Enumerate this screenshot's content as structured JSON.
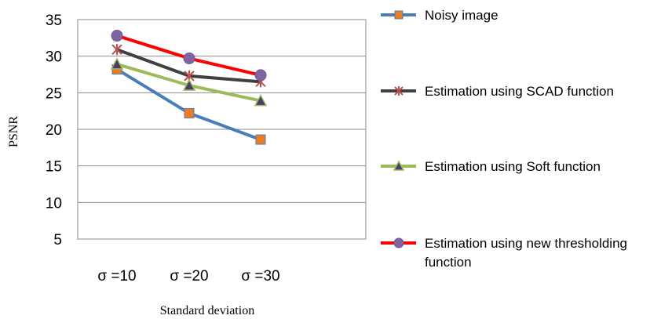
{
  "chart_data": {
    "type": "line",
    "categories": [
      "σ =10",
      "σ =20",
      "σ =30"
    ],
    "xlabel": "Standard deviation",
    "ylabel": "PSNR",
    "ylim": [
      5,
      35
    ],
    "yticks": [
      5,
      10,
      15,
      20,
      25,
      30,
      35
    ],
    "grid": true,
    "legend_position": "right",
    "series": [
      {
        "name": "Noisy image",
        "values": [
          28.2,
          22.2,
          18.6
        ],
        "color": "#4a7ebb",
        "marker": "square",
        "marker_color": "#f07a1f"
      },
      {
        "name": "Estimation using SCAD function",
        "values": [
          30.9,
          27.3,
          26.5
        ],
        "color": "#404040",
        "marker": "star",
        "marker_color": "#c0504d"
      },
      {
        "name": "Estimation using Soft function",
        "values": [
          28.9,
          26.0,
          23.9
        ],
        "color": "#9bbb59",
        "marker": "triangle",
        "marker_color": "#4b3d6e"
      },
      {
        "name": "Estimation using new thresholding function",
        "values": [
          32.8,
          29.7,
          27.4
        ],
        "color": "#ff0000",
        "marker": "circle",
        "marker_color": "#8064a2"
      }
    ]
  }
}
